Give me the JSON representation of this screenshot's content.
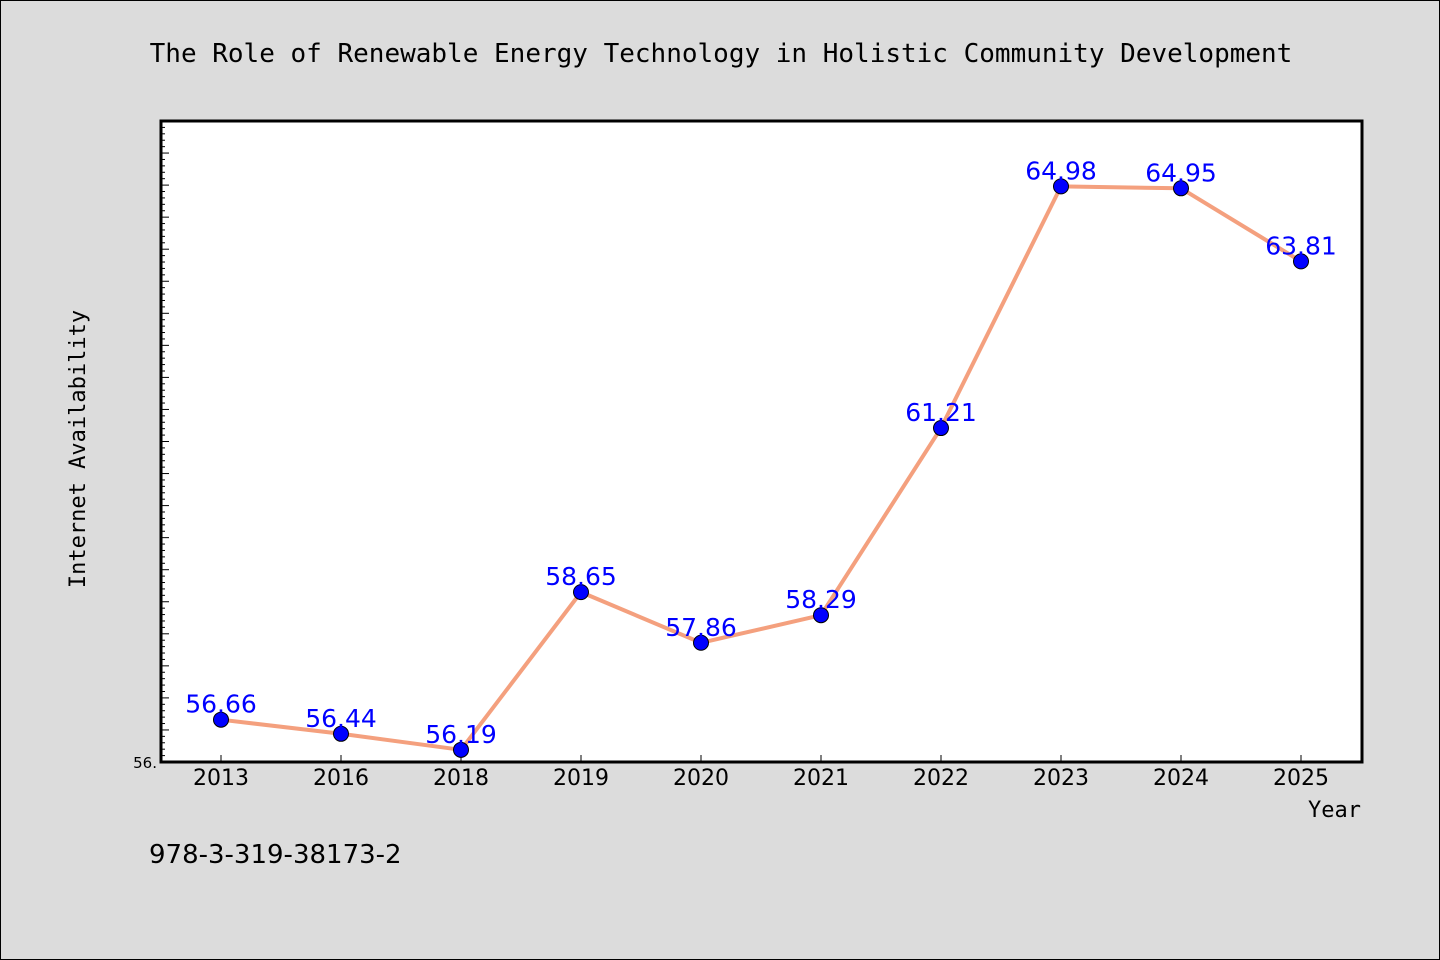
{
  "chart_data": {
    "type": "line",
    "title": "The Role of Renewable Energy Technology in Holistic Community Development",
    "xlabel": "Year",
    "ylabel": "Internet Availability",
    "categories": [
      "2013",
      "2016",
      "2018",
      "2019",
      "2020",
      "2021",
      "2022",
      "2023",
      "2024",
      "2025"
    ],
    "series": [
      {
        "name": "",
        "values": [
          56.66,
          56.44,
          56.19,
          58.65,
          57.86,
          58.29,
          61.21,
          64.98,
          64.95,
          63.81
        ]
      }
    ],
    "data_labels": [
      "56.66",
      "56.44",
      "56.19",
      "58.65",
      "57.86",
      "58.29",
      "61.21",
      "64.98",
      "64.95",
      "63.81"
    ],
    "ylim": [
      56.0,
      66.0
    ],
    "ytick_labels": [
      "56."
    ],
    "grid": false,
    "legend": "none",
    "colors": {
      "line": "#f4a07e",
      "marker": "#0000ff",
      "data_label": "#0000ff",
      "figure_bg": "#dcdcdc",
      "plot_bg": "#ffffff"
    }
  },
  "footnote": "978-3-319-38173-2"
}
